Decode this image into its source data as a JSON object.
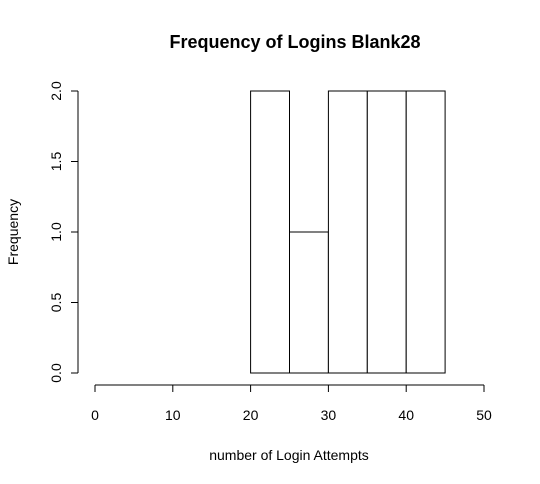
{
  "chart_data": {
    "type": "bar",
    "title": "Frequency of Logins  Blank28",
    "xlabel": "number of Login Attempts",
    "ylabel": "Frequency",
    "bins": [
      {
        "start": 20,
        "end": 25,
        "count": 2
      },
      {
        "start": 25,
        "end": 30,
        "count": 1
      },
      {
        "start": 30,
        "end": 35,
        "count": 2
      },
      {
        "start": 35,
        "end": 40,
        "count": 2
      },
      {
        "start": 40,
        "end": 45,
        "count": 2
      }
    ],
    "xlim": [
      0,
      50
    ],
    "ylim": [
      0,
      2
    ],
    "x_ticks": [
      0,
      10,
      20,
      30,
      40,
      50
    ],
    "x_tick_labels": [
      "0",
      "10",
      "20",
      "30",
      "40",
      "50"
    ],
    "y_ticks": [
      0,
      0.5,
      1,
      1.5,
      2
    ],
    "y_tick_labels": [
      "0.0",
      "0.5",
      "1.0",
      "1.5",
      "2.0"
    ],
    "grid": false,
    "colors": {
      "bar_fill": "#ffffff",
      "bar_stroke": "#000000"
    }
  }
}
